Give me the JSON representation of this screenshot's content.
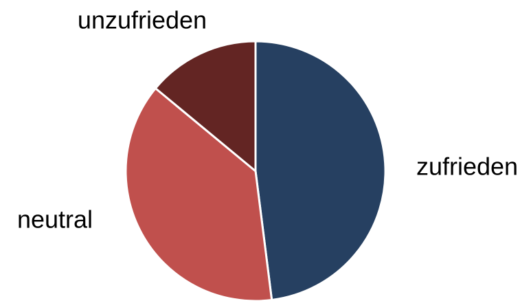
{
  "chart_data": {
    "type": "pie",
    "categories": [
      "zufrieden",
      "neutral",
      "unzufrieden"
    ],
    "values": [
      48,
      38,
      14
    ],
    "colors": [
      "#264061",
      "#c0504d",
      "#632523"
    ]
  }
}
